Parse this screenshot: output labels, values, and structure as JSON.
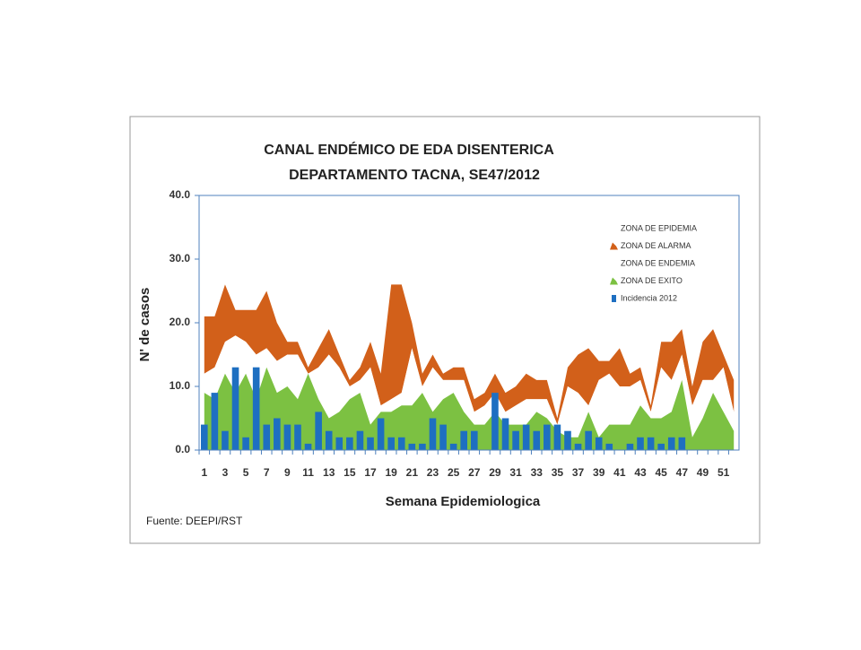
{
  "chart_data": {
    "type": "area",
    "title": "CANAL ENDÉMICO DE EDA DISENTERICA",
    "subtitle": "DEPARTAMENTO TACNA,  SE47/2012",
    "y_label": "N' de casos",
    "x_label": "Semana Epidemiologica",
    "source": "Fuente: DEEPI/RST",
    "categories": [
      1,
      null,
      3,
      null,
      5,
      null,
      7,
      null,
      9,
      null,
      11,
      null,
      13,
      null,
      15,
      null,
      17,
      null,
      19,
      null,
      21,
      null,
      23,
      null,
      25,
      null,
      27,
      null,
      29,
      null,
      31,
      null,
      33,
      null,
      35,
      null,
      37,
      null,
      39,
      null,
      41,
      null,
      43,
      null,
      45,
      null,
      47,
      null,
      49,
      null,
      51,
      null
    ],
    "ylim": [
      0,
      40
    ],
    "yticks": [
      {
        "value": 0,
        "label": "0.0"
      },
      {
        "value": 10,
        "label": "10.0"
      },
      {
        "value": 20,
        "label": "20.0"
      },
      {
        "value": 30,
        "label": "30.0"
      },
      {
        "value": 40,
        "label": "40.0"
      }
    ],
    "series": [
      {
        "name": "ZONA DE EPIDEMIA",
        "color": "#ffffff"
      },
      {
        "name": "ZONA DE ALARMA",
        "color": "#d2601a",
        "type": "area",
        "stack_order": 2,
        "values": [
          9,
          8,
          9,
          4,
          5,
          7,
          9,
          6,
          2,
          2,
          1,
          3,
          4,
          2,
          1,
          2,
          4,
          5,
          18,
          17,
          4,
          2,
          2,
          1,
          2,
          2,
          2,
          2,
          3,
          3,
          3,
          4,
          3,
          3,
          1,
          3,
          6,
          9,
          3,
          2,
          6,
          2,
          2,
          1,
          4,
          6,
          4,
          3,
          6,
          8,
          2,
          5
        ]
      },
      {
        "name": "ZONA DE ENDEMIA",
        "color": "#ffffff",
        "type": "area",
        "stack_order": 1,
        "values": [
          3,
          5,
          5,
          9,
          5,
          7,
          3,
          5,
          5,
          7,
          0,
          5,
          10,
          7,
          2,
          2,
          9,
          1,
          2,
          2,
          9,
          1,
          7,
          3,
          2,
          5,
          2,
          3,
          3,
          2,
          3,
          4,
          2,
          3,
          1,
          8,
          7,
          1,
          9,
          8,
          6,
          6,
          4,
          1,
          8,
          5,
          4,
          5,
          6,
          2,
          7,
          3
        ]
      },
      {
        "name": "ZONA DE EXITO",
        "color": "#7cc142",
        "type": "area",
        "stack_order": 0,
        "values": [
          9,
          8,
          12,
          9,
          12,
          8,
          13,
          9,
          10,
          8,
          12,
          8,
          5,
          6,
          8,
          9,
          4,
          6,
          6,
          7,
          7,
          9,
          6,
          8,
          9,
          6,
          4,
          4,
          6,
          4,
          4,
          4,
          6,
          5,
          3,
          2,
          2,
          6,
          2,
          4,
          4,
          4,
          7,
          5,
          5,
          6,
          11,
          2,
          5,
          9,
          6,
          3
        ]
      },
      {
        "name": "Incidencia 2012",
        "color": "#1e6fc1",
        "type": "bar",
        "values": [
          4,
          9,
          3,
          13,
          2,
          13,
          4,
          5,
          4,
          4,
          1,
          6,
          3,
          2,
          2,
          3,
          2,
          5,
          2,
          2,
          1,
          1,
          5,
          4,
          1,
          3,
          3,
          0,
          9,
          5,
          3,
          4,
          3,
          4,
          4,
          3,
          1,
          3,
          2,
          1,
          0,
          1,
          2,
          2,
          1,
          2,
          2,
          null,
          null,
          null,
          null,
          null
        ]
      }
    ]
  }
}
